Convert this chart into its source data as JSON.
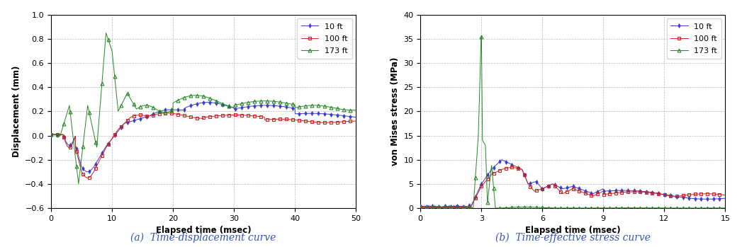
{
  "left_chart": {
    "xlabel": "Elapsed time (msec)",
    "ylabel": "Displacement (mm)",
    "xlim": [
      0,
      50
    ],
    "ylim": [
      -0.6,
      1.0
    ],
    "yticks": [
      -0.6,
      -0.4,
      -0.2,
      0.0,
      0.2,
      0.4,
      0.6,
      0.8,
      1.0
    ],
    "xticks": [
      0,
      10,
      20,
      30,
      40,
      50
    ],
    "caption": "(a)  Time-displacement curve",
    "legend_labels": [
      "10 ft",
      "100 ft",
      "173 ft"
    ],
    "colors": [
      "#3a3acc",
      "#cc2222",
      "#228822"
    ],
    "marker_colors_face": [
      "#3a3acc",
      "none",
      "none"
    ],
    "markers": [
      "d",
      "s",
      "^"
    ]
  },
  "right_chart": {
    "xlabel": "Elapsed time (msec)",
    "ylabel": "von Mises stress (MPa)",
    "xlim": [
      0,
      15
    ],
    "ylim": [
      0,
      40
    ],
    "yticks": [
      0,
      5,
      10,
      15,
      20,
      25,
      30,
      35,
      40
    ],
    "xticks": [
      0,
      3,
      6,
      9,
      12,
      15
    ],
    "caption": "(b)  Time-effective stress curve",
    "legend_labels": [
      "10 ft",
      "100 ft",
      "173 ft"
    ],
    "colors": [
      "#3a3acc",
      "#cc2222",
      "#228822"
    ],
    "markers": [
      "d",
      "s",
      "^"
    ]
  },
  "caption_color": "#3355bb",
  "grid_color": "#bbbbbb",
  "grid_style": "--"
}
